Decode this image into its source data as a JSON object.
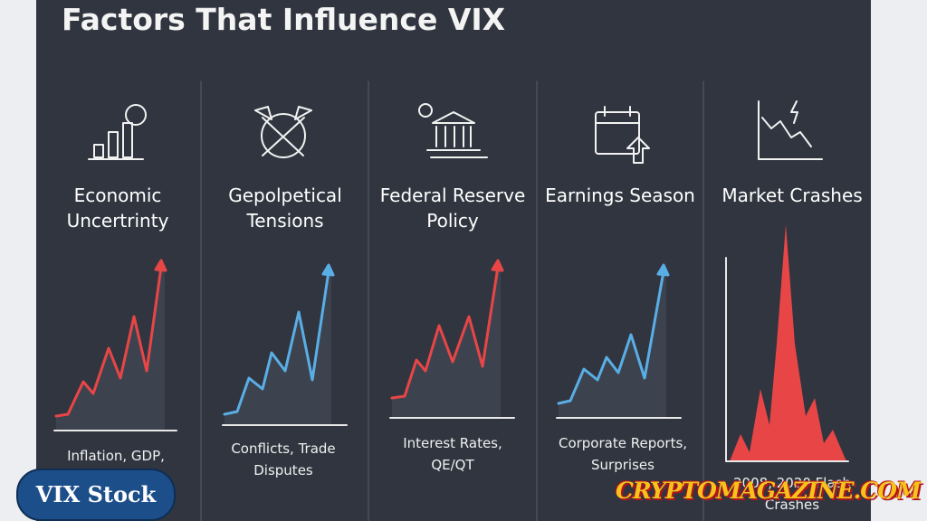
{
  "header": {
    "title": "Factors That Influence VIX"
  },
  "panels": [
    {
      "title": "Economic Uncertrinty",
      "caption": "Inflation, GDP,"
    },
    {
      "title": "Gepolpetical Tensions",
      "caption": "Conflicts, Trade Disputes"
    },
    {
      "title": "Federal Reserve Policy",
      "caption": "Interest Rates, QE/QT"
    },
    {
      "title": "Earnings Season",
      "caption": "Corporate Reports, Surprises"
    },
    {
      "title": "Market Crashes",
      "caption": "2008, 2020 Flash Crashes"
    }
  ],
  "badges": {
    "left": "VIX Stock",
    "right": "CRYPTOMAGAZINE.COM"
  }
}
